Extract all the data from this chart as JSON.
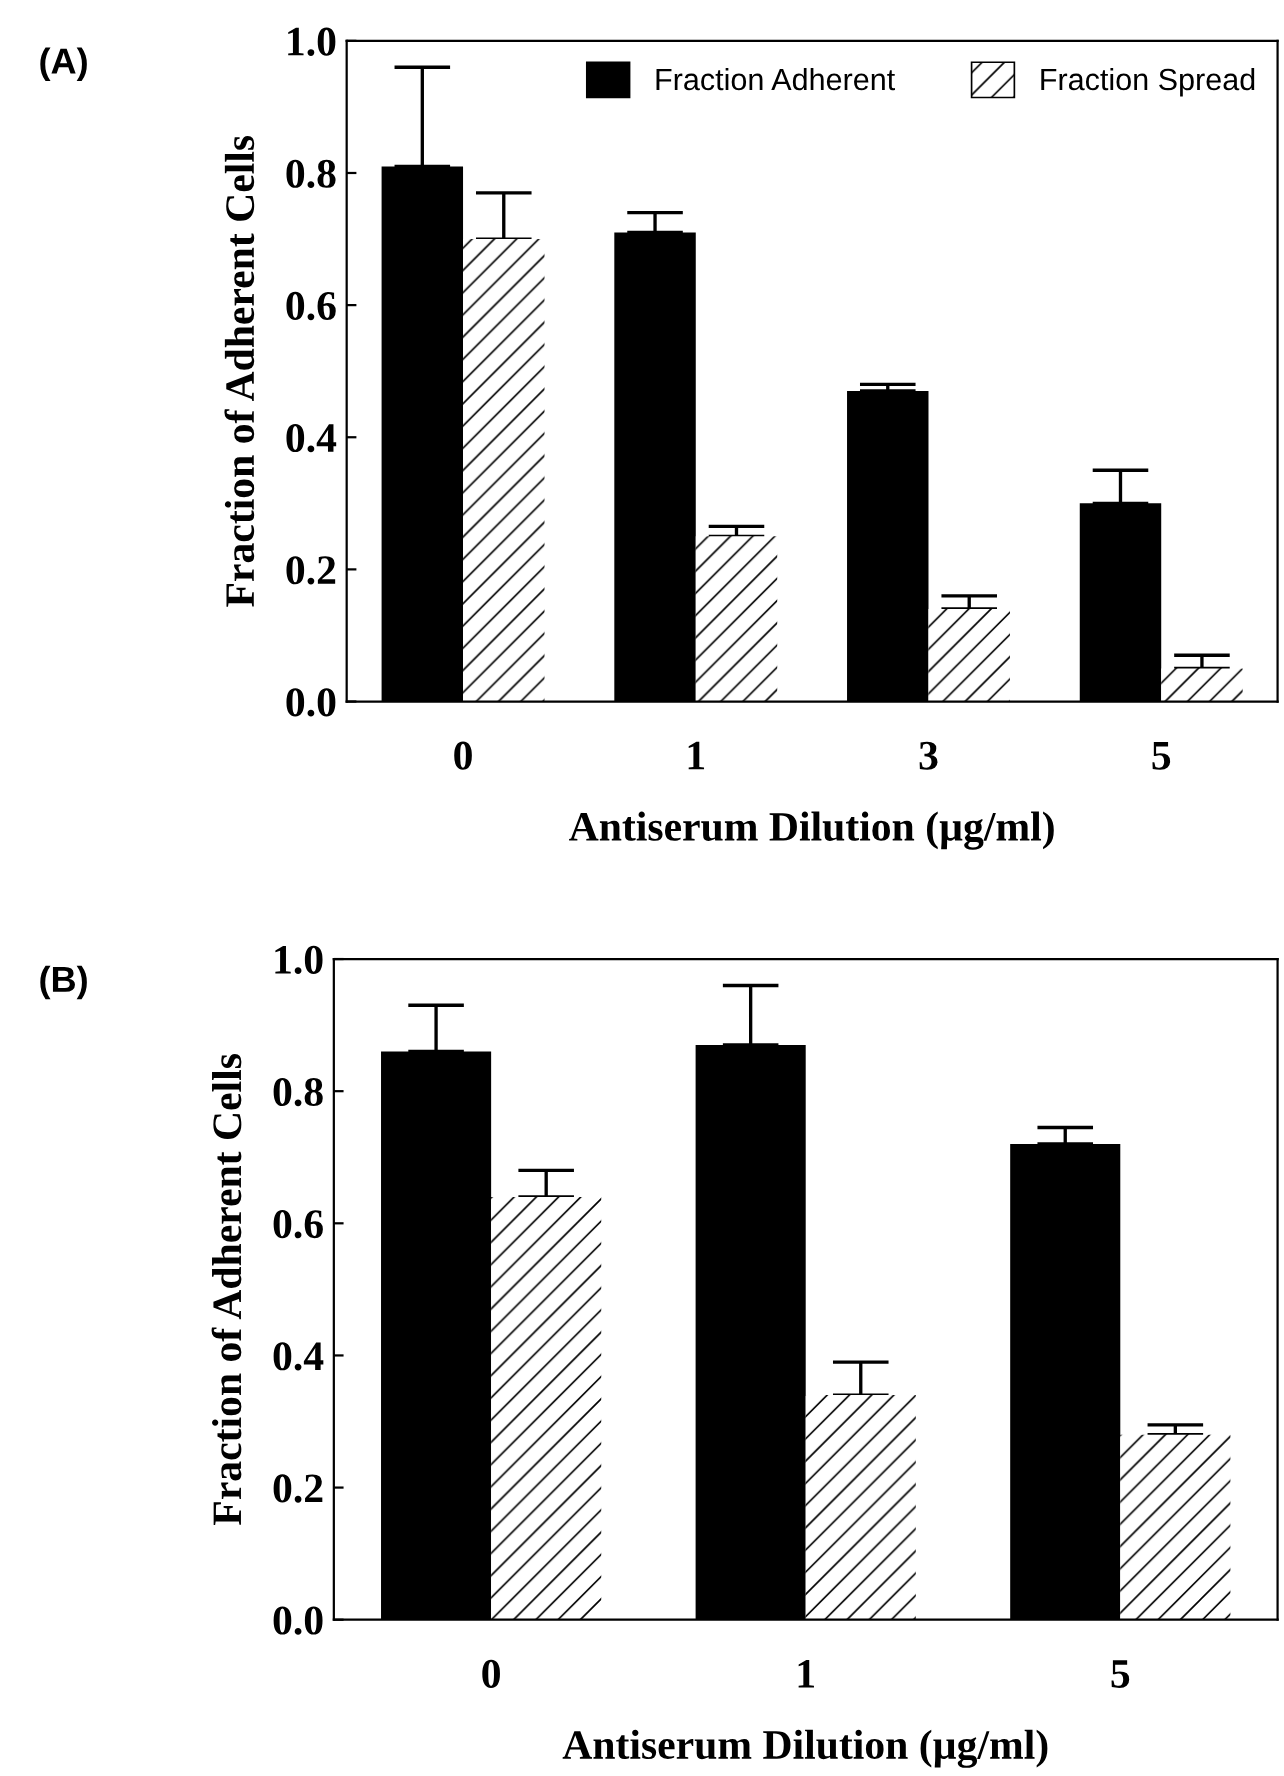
{
  "chart_data": [
    {
      "type": "bar",
      "title": "(A)",
      "xlabel": "Antiserum Dilution (µg/ml)",
      "ylabel": "Fraction of Adherent Cells",
      "categories": [
        "0",
        "1",
        "3",
        "5"
      ],
      "series": [
        {
          "name": "Fraction Adherent",
          "color": "#000000",
          "values": [
            0.81,
            0.71,
            0.47,
            0.3
          ],
          "errors": [
            [
              0.81,
              0.96
            ],
            [
              0.71,
              0.74
            ],
            [
              0.47,
              0.48
            ],
            [
              0.3,
              0.35
            ]
          ]
        },
        {
          "name": "Fraction Spread",
          "color": "#ffffff",
          "values": [
            0.7,
            0.25,
            0.14,
            0.05
          ],
          "errors": [
            [
              0.7,
              0.77
            ],
            [
              0.25,
              0.265
            ],
            [
              0.14,
              0.16
            ],
            [
              0.05,
              0.07
            ]
          ]
        }
      ],
      "ylim": [
        0,
        1.0
      ],
      "yticks": [
        {
          "value": 0,
          "label": "0.0"
        },
        {
          "value": 0.2,
          "label": "0.2"
        },
        {
          "value": 0.4,
          "label": "0.4"
        },
        {
          "value": 0.6,
          "label": "0.6"
        },
        {
          "value": 0.8,
          "label": "0.8"
        },
        {
          "value": 1.0,
          "label": "1.0"
        }
      ],
      "grid": false,
      "legend": "top right"
    },
    {
      "type": "bar",
      "title": "(B)",
      "xlabel": "Antiserum Dilution (µg/ml)",
      "ylabel": "Fraction of Adherent Cells",
      "categories": [
        "0",
        "1",
        "5"
      ],
      "series": [
        {
          "color": "#000000",
          "values": [
            0.86,
            0.87,
            0.72
          ],
          "errors": [
            [
              0.86,
              0.93
            ],
            [
              0.87,
              0.96
            ],
            [
              0.72,
              0.745
            ]
          ]
        },
        {
          "color": "#ffffff",
          "values": [
            0.64,
            0.34,
            0.28
          ],
          "errors": [
            [
              0.64,
              0.68
            ],
            [
              0.34,
              0.39
            ],
            [
              0.28,
              0.295
            ]
          ]
        }
      ],
      "ylim": [
        0,
        1.0
      ],
      "yticks": [
        {
          "value": 0,
          "label": "0.0"
        },
        {
          "value": 0.2,
          "label": "0.2"
        },
        {
          "value": 0.4,
          "label": "0.4"
        },
        {
          "value": 0.6,
          "label": "0.6"
        },
        {
          "value": 0.8,
          "label": "0.8"
        },
        {
          "value": 1.0,
          "label": "1.0"
        }
      ],
      "grid": false,
      "legend": false
    }
  ]
}
